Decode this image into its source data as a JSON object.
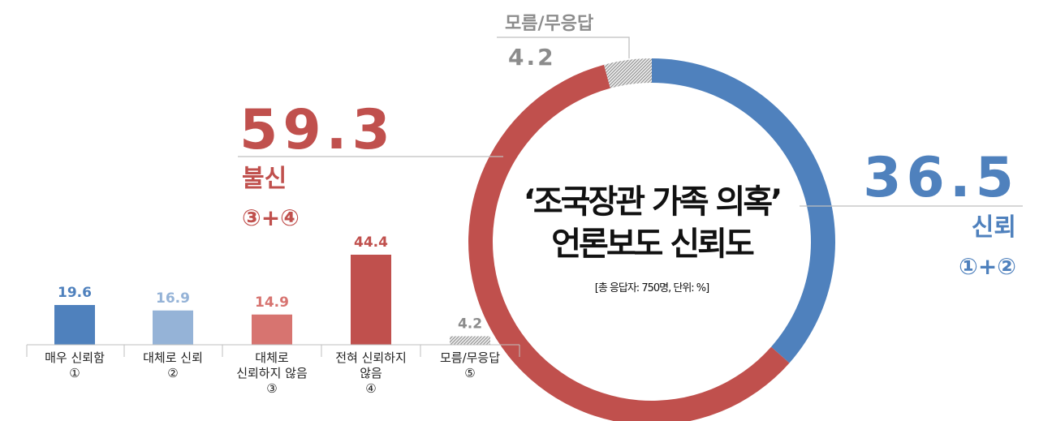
{
  "colors": {
    "trust_dark": "#4F81BD",
    "trust_light": "#95B3D7",
    "distrust_light": "#D77470",
    "distrust_dark": "#C0504D",
    "unknown": "#A6A6A6",
    "text_gray": "#8C8C8C",
    "line_gray": "#BFBFBF"
  },
  "center": {
    "title": "‘조국장관 가족 의혹’",
    "subtitle": "언론보도 신뢰도",
    "note": "[총 응답자: 750명, 단위: %]"
  },
  "summary": {
    "distrust": {
      "value": "59.3",
      "label": "불신",
      "sub": "③+④"
    },
    "trust": {
      "value": "36.5",
      "label": "신뢰",
      "sub": "①+②"
    },
    "unknown": {
      "value": "4.2",
      "label": "모름/무응답"
    }
  },
  "chart_data": [
    {
      "type": "pie",
      "variant": "donut",
      "slices": [
        {
          "label": "신뢰",
          "value": 36.5
        },
        {
          "label": "불신",
          "value": 59.3
        },
        {
          "label": "모름/무응답",
          "value": 4.2
        }
      ]
    },
    {
      "type": "bar",
      "categories": [
        "매우 신뢰함 ①",
        "대체로 신뢰 ②",
        "대체로 신뢰하지 않음 ③",
        "전혀 신뢰하지 않음 ④",
        "모름/무응답 ⑤"
      ],
      "category_lines": [
        [
          "매우 신뢰함",
          "①"
        ],
        [
          "대체로 신뢰",
          "②"
        ],
        [
          "대체로",
          "신뢰하지 않음",
          "③"
        ],
        [
          "전혀 신뢰하지",
          "않음",
          "④"
        ],
        [
          "모름/무응답",
          "⑤"
        ]
      ],
      "values": [
        19.6,
        16.9,
        14.9,
        44.4,
        4.2
      ],
      "value_labels": [
        "19.6",
        "16.9",
        "14.9",
        "44.4",
        "4.2"
      ]
    }
  ]
}
